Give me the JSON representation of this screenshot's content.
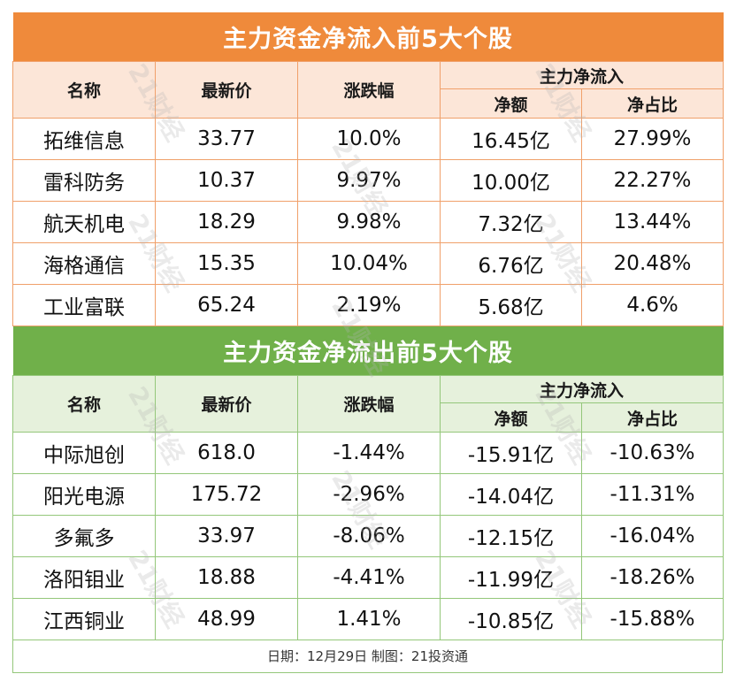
{
  "inflow": {
    "title": "主力资金净流入前5大个股",
    "headers": {
      "name": "名称",
      "price": "最新价",
      "change": "涨跌幅",
      "group": "主力净流入",
      "net": "净额",
      "ratio": "净占比"
    },
    "rows": [
      {
        "name": "拓维信息",
        "price": "33.77",
        "change": "10.0%",
        "net": "16.45亿",
        "ratio": "27.99%"
      },
      {
        "name": "雷科防务",
        "price": "10.37",
        "change": "9.97%",
        "net": "10.00亿",
        "ratio": "22.27%"
      },
      {
        "name": "航天机电",
        "price": "18.29",
        "change": "9.98%",
        "net": "7.32亿",
        "ratio": "13.44%"
      },
      {
        "name": "海格通信",
        "price": "15.35",
        "change": "10.04%",
        "net": "6.76亿",
        "ratio": "20.48%"
      },
      {
        "name": "工业富联",
        "price": "65.24",
        "change": "2.19%",
        "net": "5.68亿",
        "ratio": "4.6%"
      }
    ],
    "color": "#ef8a3b"
  },
  "outflow": {
    "title": "主力资金净流出前5大个股",
    "headers": {
      "name": "名称",
      "price": "最新价",
      "change": "涨跌幅",
      "group": "主力净流入",
      "net": "净额",
      "ratio": "净占比"
    },
    "rows": [
      {
        "name": "中际旭创",
        "price": "618.0",
        "change": "-1.44%",
        "net": "-15.91亿",
        "ratio": "-10.63%"
      },
      {
        "name": "阳光电源",
        "price": "175.72",
        "change": "-2.96%",
        "net": "-14.04亿",
        "ratio": "-11.31%"
      },
      {
        "name": "多氟多",
        "price": "33.97",
        "change": "-8.06%",
        "net": "-12.15亿",
        "ratio": "-16.04%"
      },
      {
        "name": "洛阳钼业",
        "price": "18.88",
        "change": "-4.41%",
        "net": "-11.99亿",
        "ratio": "-18.26%"
      },
      {
        "name": "江西铜业",
        "price": "48.99",
        "change": "1.41%",
        "net": "-10.85亿",
        "ratio": "-15.88%"
      }
    ],
    "color": "#70b04a"
  },
  "footer": "日期：12月29日 制图：21投资通",
  "watermark": "21财经"
}
